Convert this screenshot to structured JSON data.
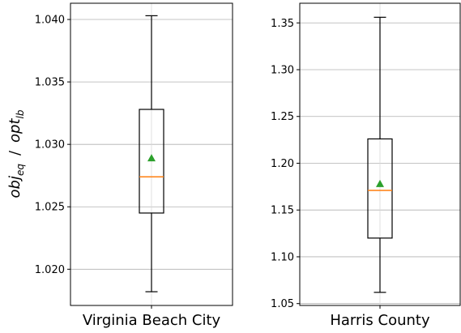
{
  "chart_data": [
    {
      "type": "box",
      "category": "Virginia Beach City",
      "ylabel": {
        "left_main": "obj",
        "left_sub": "eq",
        "separator": "/",
        "right_main": "opt",
        "right_sub": "lb"
      },
      "ylim": [
        1.0171,
        1.0413
      ],
      "yticks": [
        1.02,
        1.025,
        1.03,
        1.035,
        1.04
      ],
      "ytick_labels": [
        "1.020",
        "1.025",
        "1.030",
        "1.035",
        "1.040"
      ],
      "grid": "y",
      "whisker_low": 1.0182,
      "q1": 1.0245,
      "median": 1.0274,
      "mean": 1.0289,
      "q3": 1.0328,
      "whisker_high": 1.0403
    },
    {
      "type": "box",
      "category": "Harris County",
      "ylim": [
        1.048,
        1.371
      ],
      "yticks": [
        1.05,
        1.1,
        1.15,
        1.2,
        1.25,
        1.3,
        1.35
      ],
      "ytick_labels": [
        "1.05",
        "1.10",
        "1.15",
        "1.20",
        "1.25",
        "1.30",
        "1.35"
      ],
      "grid": "y",
      "whisker_low": 1.062,
      "q1": 1.12,
      "median": 1.171,
      "mean": 1.178,
      "q3": 1.226,
      "whisker_high": 1.356
    }
  ],
  "colors": {
    "box": "#000000",
    "median": "#ff7f0e",
    "mean": "#2ca02c",
    "grid": "#b0b0b0",
    "vgrid": "#d8d8d8"
  }
}
